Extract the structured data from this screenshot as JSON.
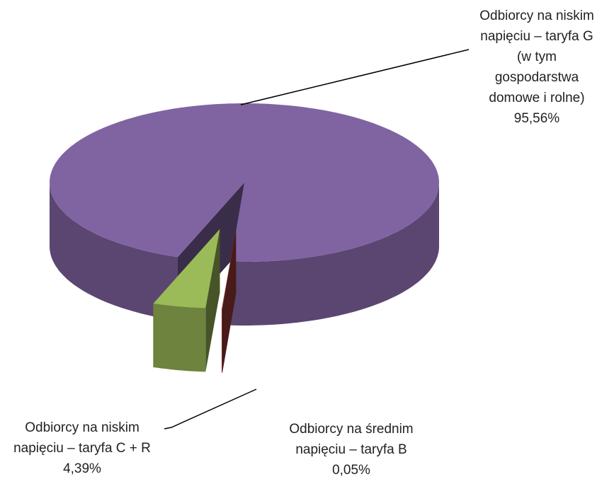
{
  "chart_data": {
    "type": "pie3d",
    "categories": [
      "Odbiorcy na niskim napięciu – taryfa G (w tym gospodarstwa domowe i rolne)",
      "Odbiorcy na niskim napięciu – taryfa C + R",
      "Odbiorcy na średnim napięciu – taryfa B"
    ],
    "values": [
      95.56,
      4.39,
      0.05
    ],
    "value_labels": [
      "95,56%",
      "4,39%",
      "0,05%"
    ],
    "colors": [
      "#8064a2",
      "#9bbb59",
      "#a03a36"
    ]
  }
}
